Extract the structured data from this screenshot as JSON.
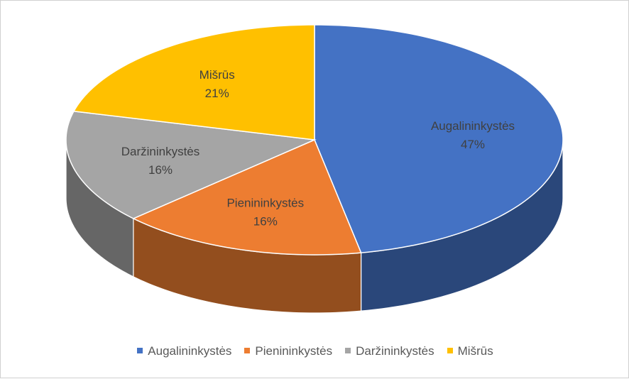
{
  "chart_data": {
    "type": "pie",
    "title": "",
    "categories": [
      "Augalininkystės",
      "Pienininkystės",
      "Daržininkystės",
      "Mišrūs"
    ],
    "values": [
      47,
      16,
      16,
      21
    ],
    "data_labels": [
      "47%",
      "16%",
      "16%",
      "21%"
    ],
    "colors": [
      "#4472C4",
      "#ED7D31",
      "#A5A5A5",
      "#FFC000"
    ],
    "legend_position": "bottom",
    "style": "3d-tilted"
  }
}
